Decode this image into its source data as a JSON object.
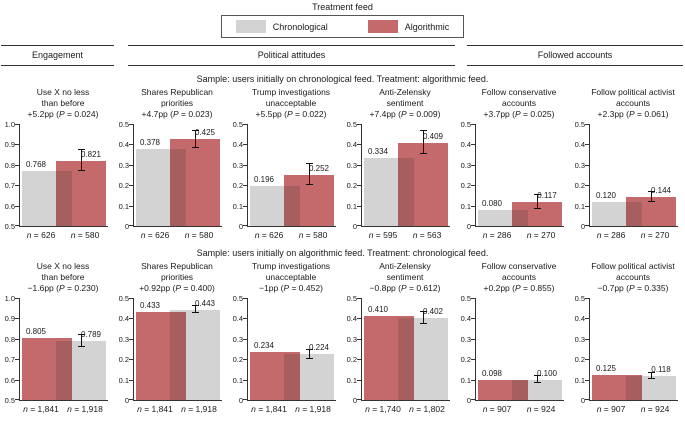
{
  "colors": {
    "chronological": "#d3d3d3",
    "algorithmic": "#c4696c",
    "overlap": "#a65e5f",
    "axis": "#333333"
  },
  "chart_data": {
    "type": "bar",
    "legend": {
      "title": "Treatment feed",
      "position": "top",
      "entries": [
        "Chronological",
        "Algorithmic"
      ]
    },
    "group_headers": [
      {
        "label": "Engagement",
        "panel_span": 1
      },
      {
        "label": "Political attitudes",
        "panel_span": 3
      },
      {
        "label": "Followed accounts",
        "panel_span": 2
      }
    ],
    "rows": [
      {
        "subtitle": "Sample: users initially on chronological feed. Treatment: algorithmic feed.",
        "panels": [
          {
            "title_lines": [
              "Use X no less",
              "than before"
            ],
            "effect": "+5.2pp (P = 0.024)",
            "ylim": [
              0.5,
              1.0
            ],
            "yticks": [
              "1.0",
              "0.9",
              "0.8",
              "0.7",
              "0.6",
              "0.5"
            ],
            "bars": [
              {
                "feed": "Chronological",
                "value": 0.768,
                "n": "n = 626"
              },
              {
                "feed": "Algorithmic",
                "value": 0.821,
                "n": "n = 580",
                "ci_half_width": 0.05
              }
            ]
          },
          {
            "title_lines": [
              "Shares Republican",
              "priorities"
            ],
            "effect": "+4.7pp (P = 0.023)",
            "ylim": [
              0,
              0.5
            ],
            "yticks": [
              "0.5",
              "0.4",
              "0.3",
              "0.2",
              "0.1",
              "0"
            ],
            "bars": [
              {
                "feed": "Chronological",
                "value": 0.378,
                "n": "n = 626"
              },
              {
                "feed": "Algorithmic",
                "value": 0.425,
                "n": "n = 580",
                "ci_half_width": 0.042
              }
            ]
          },
          {
            "title_lines": [
              "Trump investigations",
              "unacceptable"
            ],
            "effect": "+5.5pp (P = 0.022)",
            "ylim": [
              0,
              0.5
            ],
            "yticks": [
              "0.5",
              "0.4",
              "0.3",
              "0.2",
              "0.1",
              "0"
            ],
            "bars": [
              {
                "feed": "Chronological",
                "value": 0.196,
                "n": "n = 626"
              },
              {
                "feed": "Algorithmic",
                "value": 0.252,
                "n": "n = 580",
                "ci_half_width": 0.05
              }
            ]
          },
          {
            "title_lines": [
              "Anti-Zelensky",
              "sentiment"
            ],
            "effect": "+7.4pp (P = 0.009)",
            "ylim": [
              0,
              0.5
            ],
            "yticks": [
              "0.5",
              "0.4",
              "0.3",
              "0.2",
              "0.1",
              "0"
            ],
            "bars": [
              {
                "feed": "Chronological",
                "value": 0.334,
                "n": "n = 595"
              },
              {
                "feed": "Algorithmic",
                "value": 0.409,
                "n": "n = 563",
                "ci_half_width": 0.055
              }
            ]
          },
          {
            "title_lines": [
              "Follow conservative",
              "accounts"
            ],
            "effect": "+3.7pp (P = 0.025)",
            "ylim": [
              0,
              0.5
            ],
            "yticks": [
              "0.5",
              "0.4",
              "0.3",
              "0.2",
              "0.1",
              "0"
            ],
            "bars": [
              {
                "feed": "Chronological",
                "value": 0.08,
                "n": "n = 286"
              },
              {
                "feed": "Algorithmic",
                "value": 0.117,
                "n": "n = 270",
                "ci_half_width": 0.035
              }
            ]
          },
          {
            "title_lines": [
              "Follow political activist",
              "accounts"
            ],
            "effect": "+2.3pp (P = 0.061)",
            "ylim": [
              0,
              0.5
            ],
            "yticks": [
              "0.5",
              "0.4",
              "0.3",
              "0.2",
              "0.1",
              "0"
            ],
            "bars": [
              {
                "feed": "Chronological",
                "value": 0.12,
                "n": "n = 286"
              },
              {
                "feed": "Algorithmic",
                "value": 0.144,
                "n": "n = 270",
                "ci_half_width": 0.025
              }
            ]
          }
        ]
      },
      {
        "subtitle": "Sample: users initially on algorithmic feed. Treatment: chronological feed.",
        "panels": [
          {
            "title_lines": [
              "Use X no less",
              "than before"
            ],
            "effect": "−1.6pp (P = 0.230)",
            "ylim": [
              0.5,
              1.0
            ],
            "yticks": [
              "1.0",
              "0.9",
              "0.8",
              "0.7",
              "0.6",
              "0.5"
            ],
            "bars": [
              {
                "feed": "Algorithmic",
                "value": 0.805,
                "n": "n = 1,841"
              },
              {
                "feed": "Chronological",
                "value": 0.789,
                "n": "n = 1,918",
                "ci_half_width": 0.028
              }
            ]
          },
          {
            "title_lines": [
              "Shares Republican",
              "priorities"
            ],
            "effect": "+0.92pp (P = 0.400)",
            "ylim": [
              0,
              0.5
            ],
            "yticks": [
              "0.5",
              "0.4",
              "0.3",
              "0.2",
              "0.1",
              "0"
            ],
            "bars": [
              {
                "feed": "Algorithmic",
                "value": 0.433,
                "n": "n = 1,841"
              },
              {
                "feed": "Chronological",
                "value": 0.443,
                "n": "n = 1,918",
                "ci_half_width": 0.018
              }
            ]
          },
          {
            "title_lines": [
              "Trump investigations",
              "unacceptable"
            ],
            "effect": "−1pp (P = 0.452)",
            "ylim": [
              0,
              0.5
            ],
            "yticks": [
              "0.5",
              "0.4",
              "0.3",
              "0.2",
              "0.1",
              "0"
            ],
            "bars": [
              {
                "feed": "Algorithmic",
                "value": 0.234,
                "n": "n = 1,841"
              },
              {
                "feed": "Chronological",
                "value": 0.224,
                "n": "n = 1,918",
                "ci_half_width": 0.022
              }
            ]
          },
          {
            "title_lines": [
              "Anti-Zelensky",
              "sentiment"
            ],
            "effect": "−0.8pp (P = 0.612)",
            "ylim": [
              0,
              0.5
            ],
            "yticks": [
              "0.5",
              "0.4",
              "0.3",
              "0.2",
              "0.1",
              "0"
            ],
            "bars": [
              {
                "feed": "Algorithmic",
                "value": 0.41,
                "n": "n = 1,740"
              },
              {
                "feed": "Chronological",
                "value": 0.402,
                "n": "n = 1,802",
                "ci_half_width": 0.03
              }
            ]
          },
          {
            "title_lines": [
              "Follow conservative",
              "accounts"
            ],
            "effect": "+0.2pp (P = 0.855)",
            "ylim": [
              0,
              0.5
            ],
            "yticks": [
              "0.5",
              "0.4",
              "0.3",
              "0.2",
              "0.1",
              "0"
            ],
            "bars": [
              {
                "feed": "Algorithmic",
                "value": 0.098,
                "n": "n = 907"
              },
              {
                "feed": "Chronological",
                "value": 0.1,
                "n": "n = 924",
                "ci_half_width": 0.018
              }
            ]
          },
          {
            "title_lines": [
              "Follow political activist",
              "accounts"
            ],
            "effect": "−0.7pp (P = 0.335)",
            "ylim": [
              0,
              0.5
            ],
            "yticks": [
              "0.5",
              "0.4",
              "0.3",
              "0.2",
              "0.1",
              "0"
            ],
            "bars": [
              {
                "feed": "Algorithmic",
                "value": 0.125,
                "n": "n = 907"
              },
              {
                "feed": "Chronological",
                "value": 0.118,
                "n": "n = 924",
                "ci_half_width": 0.014
              }
            ]
          }
        ]
      }
    ]
  }
}
